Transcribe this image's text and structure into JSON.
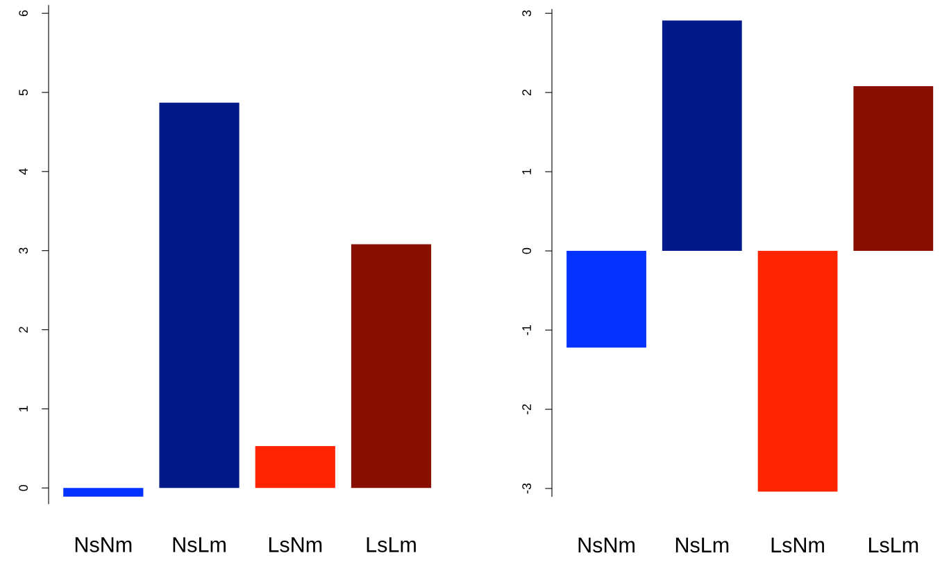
{
  "chart_data": [
    {
      "type": "bar",
      "categories": [
        "NsNm",
        "NsLm",
        "LsNm",
        "LsLm"
      ],
      "values": [
        -0.11,
        4.87,
        0.53,
        3.08
      ],
      "colors": [
        "#0433ff",
        "#021989",
        "#ff2501",
        "#891000"
      ],
      "ylim": [
        -0.2,
        6.1
      ],
      "yticks": [
        0,
        1,
        2,
        3,
        4,
        5,
        6
      ],
      "grid": false,
      "legend": false
    },
    {
      "type": "bar",
      "categories": [
        "NsNm",
        "NsLm",
        "LsNm",
        "LsLm"
      ],
      "values": [
        -1.22,
        2.91,
        -3.04,
        2.08
      ],
      "colors": [
        "#0433ff",
        "#021989",
        "#ff2501",
        "#891000"
      ],
      "ylim": [
        -3.1,
        3.05
      ],
      "yticks": [
        -3,
        -2,
        -1,
        0,
        1,
        2,
        3
      ],
      "grid": false,
      "legend": false
    }
  ]
}
